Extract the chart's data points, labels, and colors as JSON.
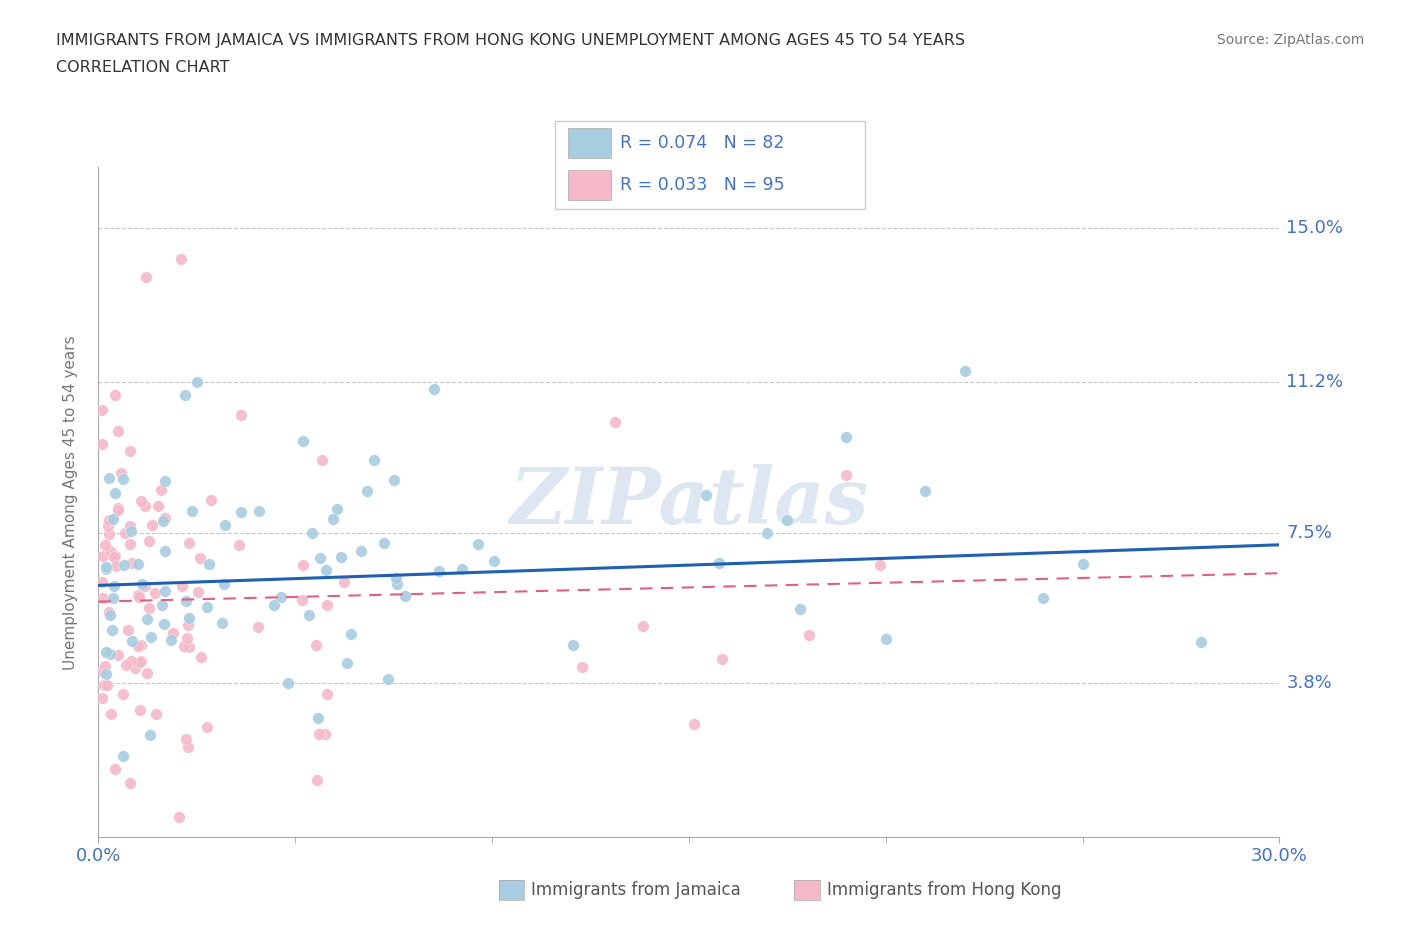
{
  "title_line1": "IMMIGRANTS FROM JAMAICA VS IMMIGRANTS FROM HONG KONG UNEMPLOYMENT AMONG AGES 45 TO 54 YEARS",
  "title_line2": "CORRELATION CHART",
  "source_text": "Source: ZipAtlas.com",
  "ylabel": "Unemployment Among Ages 45 to 54 years",
  "xlim": [
    0.0,
    0.3
  ],
  "ylim": [
    0.0,
    0.165
  ],
  "ytick_positions": [
    0.038,
    0.075,
    0.112,
    0.15
  ],
  "ytick_labels": [
    "3.8%",
    "7.5%",
    "11.2%",
    "15.0%"
  ],
  "jamaica_R": 0.074,
  "jamaica_N": 82,
  "hongkong_R": 0.033,
  "hongkong_N": 95,
  "jamaica_color": "#a8cce0",
  "hongkong_color": "#f4b8c8",
  "jamaica_line_color": "#2060b0",
  "hongkong_line_color": "#e06080",
  "watermark": "ZIPatlas",
  "legend_label_jamaica": "Immigrants from Jamaica",
  "legend_label_hongkong": "Immigrants from Hong Kong",
  "tick_color": "#4472C4",
  "grid_color": "#c8c8c8",
  "ylabel_color": "#777777",
  "title_color": "#333333",
  "source_color": "#777777",
  "legend_text_color": "#4472C4"
}
